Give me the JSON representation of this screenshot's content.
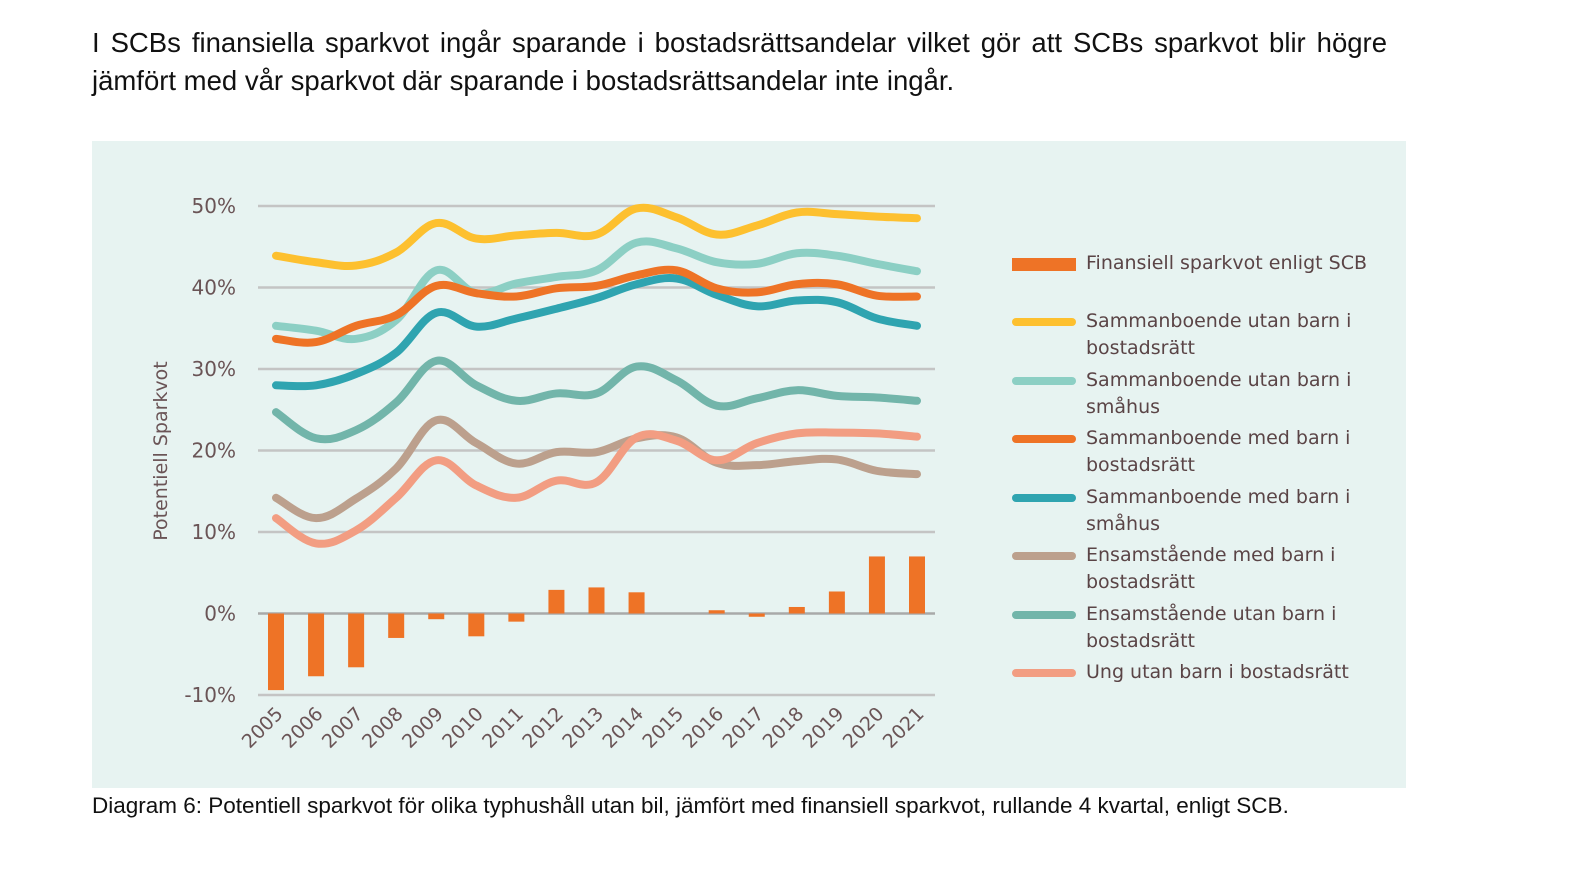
{
  "intro_text": "I SCBs finansiella sparkvot ingår sparande i bostadsrättsandelar vilket gör att SCBs sparkvot blir högre jämfört med vår sparkvot där sparande i bostadsrättsandelar inte ingår.",
  "caption": "Diagram 6: Potentiell sparkvot för olika typhushåll utan bil, jämfört med finansiell sparkvot, rullande 4 kvartal, enligt SCB.",
  "colors": {
    "panel_bg": "#e7f3f1",
    "grid": "#c4c4c4",
    "axis_text": "#6a5456"
  },
  "chart_data": {
    "type": "line",
    "title": "",
    "xlabel": "",
    "ylabel": "Potentiell Sparkvot",
    "ylim": [
      -10,
      50
    ],
    "yticks": [
      -10,
      0,
      10,
      20,
      30,
      40,
      50
    ],
    "ytick_labels": [
      "-10%",
      "0%",
      "10%",
      "20%",
      "30%",
      "40%",
      "50%"
    ],
    "grid": true,
    "legend_position": "right",
    "categories": [
      "2005",
      "2006",
      "2007",
      "2008",
      "2009",
      "2010",
      "2011",
      "2012",
      "2013",
      "2014",
      "2015",
      "2016",
      "2017",
      "2018",
      "2019",
      "2020",
      "2021"
    ],
    "bar_series": {
      "name": "Finansiell sparkvot enligt SCB",
      "color": "#ee7326",
      "values": [
        -9.4,
        -7.7,
        -6.6,
        -3.0,
        -0.7,
        -2.8,
        -1.0,
        2.9,
        3.2,
        2.6,
        0.0,
        0.4,
        -0.4,
        0.8,
        2.7,
        7.0,
        7.0
      ]
    },
    "series": [
      {
        "name": "Sammanboende utan barn i bostadsrätt",
        "legend_lines": [
          "Sammanboende utan barn i",
          "bostadsrätt"
        ],
        "color": "#fdc02f",
        "values": [
          43.9,
          43.1,
          42.7,
          44.3,
          47.9,
          46.0,
          46.4,
          46.7,
          46.5,
          49.7,
          48.6,
          46.5,
          47.6,
          49.2,
          49.0,
          48.7,
          48.5
        ]
      },
      {
        "name": "Sammanboende utan barn i småhus",
        "legend_lines": [
          "Sammanboende utan barn i",
          "småhus"
        ],
        "color": "#8ccfc4",
        "values": [
          35.3,
          34.7,
          33.7,
          36.0,
          42.1,
          39.3,
          40.5,
          41.3,
          42.1,
          45.5,
          44.8,
          43.1,
          42.9,
          44.2,
          43.9,
          42.9,
          42.0
        ]
      },
      {
        "name": "Sammanboende med barn i bostadsrätt",
        "legend_lines": [
          "Sammanboende med barn i",
          "bostadsrätt"
        ],
        "color": "#ee7326",
        "values": [
          33.7,
          33.3,
          35.3,
          36.6,
          40.2,
          39.3,
          38.9,
          39.9,
          40.2,
          41.5,
          42.1,
          39.9,
          39.4,
          40.4,
          40.4,
          39.0,
          38.9
        ]
      },
      {
        "name": "Sammanboende med barn i småhus",
        "legend_lines": [
          "Sammanboende med barn i",
          "småhus"
        ],
        "color": "#2fa4b0",
        "values": [
          28.0,
          28.0,
          29.4,
          32.0,
          36.9,
          35.2,
          36.2,
          37.4,
          38.7,
          40.4,
          41.1,
          39.1,
          37.7,
          38.4,
          38.2,
          36.2,
          35.3
        ]
      },
      {
        "name": "Ensamstående med barn i bostadsrätt",
        "legend_lines": [
          "Ensamstående med barn i",
          "bostadsrätt"
        ],
        "color": "#bca08d",
        "values": [
          14.2,
          11.7,
          14.1,
          17.8,
          23.7,
          20.9,
          18.4,
          19.8,
          19.8,
          21.5,
          21.6,
          18.5,
          18.2,
          18.7,
          18.9,
          17.5,
          17.1
        ]
      },
      {
        "name": "Ensamstående utan barn i bostadsrätt",
        "legend_lines": [
          "Ensamstående utan barn i",
          "bostadsrätt"
        ],
        "color": "#72b5aa",
        "values": [
          24.7,
          21.5,
          22.5,
          25.9,
          31.0,
          28.0,
          26.1,
          27.0,
          27.0,
          30.3,
          28.6,
          25.5,
          26.4,
          27.4,
          26.7,
          26.5,
          26.1
        ]
      },
      {
        "name": "Ung utan barn i bostadsrätt",
        "legend_lines": [
          "Ung utan barn i bostadsrätt"
        ],
        "color": "#f29d82",
        "values": [
          11.7,
          8.6,
          10.2,
          14.2,
          18.8,
          15.7,
          14.2,
          16.3,
          16.1,
          21.6,
          21.2,
          18.8,
          20.9,
          22.1,
          22.2,
          22.1,
          21.7
        ]
      }
    ],
    "draw_order": [
      5,
      4,
      6,
      1,
      3,
      2,
      0
    ]
  }
}
